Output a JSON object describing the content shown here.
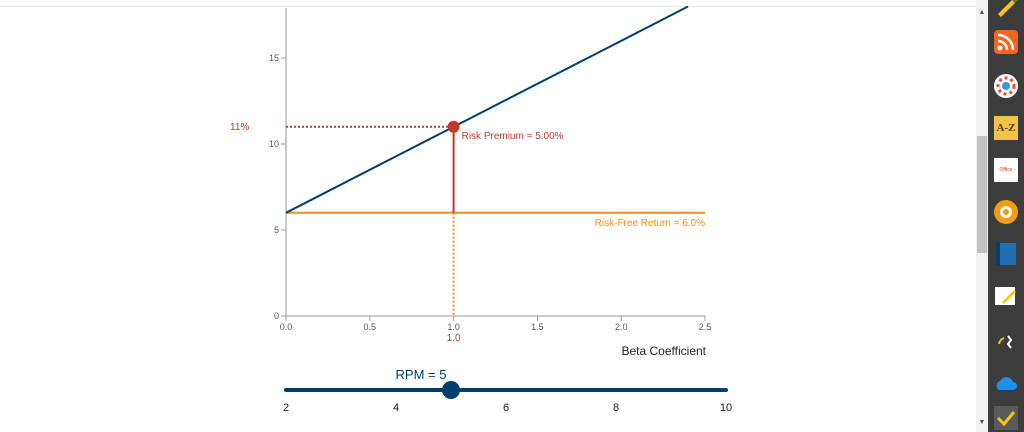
{
  "chart_data": {
    "type": "line",
    "xlabel": "Beta Coefficient",
    "ylabel": "",
    "xlim": [
      0,
      2.5
    ],
    "ylim": [
      0,
      15
    ],
    "x_ticks": [
      "0.0",
      "0.5",
      "1.0",
      "1.5",
      "2.0",
      "2.5"
    ],
    "y_ticks": [
      "0",
      "5",
      "10",
      "15"
    ],
    "grid": false,
    "series": [
      {
        "color": "#003f6b",
        "x": [
          0,
          2.5
        ],
        "y": [
          6,
          18.5
        ]
      },
      {
        "color": "#f08c1e",
        "x": [
          0,
          2.5
        ],
        "y": [
          6,
          6
        ]
      }
    ],
    "point": {
      "x": 1.0,
      "y": 11
    },
    "y_marker_label": "11%",
    "x_marker_label": "1.0",
    "risk_premium_label": "Risk Premium = 5.00%",
    "risk_free_label": "Risk-Free Return = 6.0%",
    "colors": {
      "sml": "#003f6b",
      "risk_free": "#f08c1e",
      "marker": "#c0392b"
    }
  },
  "slider": {
    "label": "RPM = 5",
    "value": 5,
    "min": 2,
    "max": 10,
    "ticks": [
      "2",
      "4",
      "6",
      "8",
      "10"
    ],
    "color": "#003f6b"
  },
  "scrollbar": {
    "up_arrow": "▲",
    "down_arrow": "▼"
  },
  "dock": {
    "icons": [
      "pencil-icon",
      "rss-icon",
      "color-wheel-icon",
      "az-dictionary-icon",
      "office-icon",
      "orange-circle-icon",
      "blue-book-icon",
      "note-icon",
      "wifi-sparkle-icon",
      "cloud-icon",
      "check-icon"
    ],
    "az_text": "A-Z",
    "office_text": "Office"
  }
}
